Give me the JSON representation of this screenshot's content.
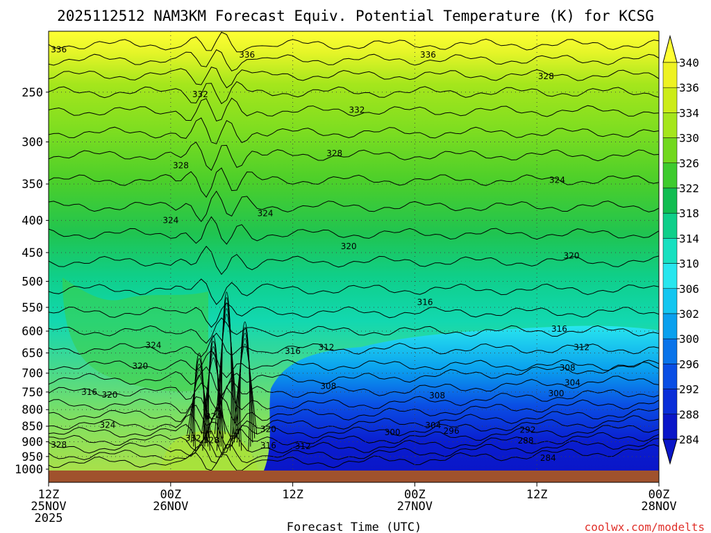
{
  "chart_data": {
    "type": "heatmap",
    "title": "2025112512 NAM3KM Forecast Equiv. Potential Temperature (K) for KCSG",
    "xlabel": "Forecast Time (UTC)",
    "ylabel": "",
    "credit": "coolwx.com/modelts",
    "x_ticks": [
      {
        "hour": 0,
        "line1": "12Z",
        "line2": "25NOV",
        "line3": "2025"
      },
      {
        "hour": 12,
        "line1": "00Z",
        "line2": "26NOV",
        "line3": ""
      },
      {
        "hour": 24,
        "line1": "12Z",
        "line2": "",
        "line3": ""
      },
      {
        "hour": 36,
        "line1": "00Z",
        "line2": "27NOV",
        "line3": ""
      },
      {
        "hour": 48,
        "line1": "12Z",
        "line2": "",
        "line3": ""
      },
      {
        "hour": 60,
        "line1": "00Z",
        "line2": "28NOV",
        "line3": ""
      }
    ],
    "xlim_hours": [
      0,
      60
    ],
    "y_ticks": [
      250,
      300,
      350,
      400,
      450,
      500,
      550,
      600,
      650,
      700,
      750,
      800,
      850,
      900,
      950,
      1000
    ],
    "ylim_hpa": [
      200,
      1000
    ],
    "y_scale": "log-pressure",
    "grid": true,
    "colorbar": {
      "labels": [
        340,
        336,
        334,
        330,
        326,
        322,
        318,
        314,
        310,
        306,
        302,
        300,
        296,
        292,
        288,
        284
      ],
      "colors": [
        "#ffff33",
        "#eef222",
        "#ccec18",
        "#a5e61c",
        "#72d81e",
        "#3ecb2e",
        "#12bd52",
        "#0fcf8a",
        "#18e0c0",
        "#28e6ee",
        "#14c6f0",
        "#0aa0ee",
        "#0a74ea",
        "#0a4ee4",
        "#0a2ed8",
        "#0a16c8"
      ]
    },
    "contour_labels": [
      {
        "text": "336",
        "hour": 1.0,
        "p": 214
      },
      {
        "text": "336",
        "hour": 19.5,
        "p": 218
      },
      {
        "text": "336",
        "hour": 37.3,
        "p": 218
      },
      {
        "text": "332",
        "hour": 14.9,
        "p": 252
      },
      {
        "text": "332",
        "hour": 30.3,
        "p": 267
      },
      {
        "text": "328",
        "hour": 48.9,
        "p": 236
      },
      {
        "text": "328",
        "hour": 28.1,
        "p": 313
      },
      {
        "text": "328",
        "hour": 13.0,
        "p": 327
      },
      {
        "text": "324",
        "hour": 50.0,
        "p": 345
      },
      {
        "text": "324",
        "hour": 21.3,
        "p": 390
      },
      {
        "text": "324",
        "hour": 12.0,
        "p": 400
      },
      {
        "text": "320",
        "hour": 29.5,
        "p": 440
      },
      {
        "text": "320",
        "hour": 51.4,
        "p": 455
      },
      {
        "text": "316",
        "hour": 37.0,
        "p": 540
      },
      {
        "text": "316",
        "hour": 50.2,
        "p": 595
      },
      {
        "text": "312",
        "hour": 52.4,
        "p": 637
      },
      {
        "text": "316",
        "hour": 24.0,
        "p": 646
      },
      {
        "text": "312",
        "hour": 27.3,
        "p": 637
      },
      {
        "text": "324",
        "hour": 10.3,
        "p": 632
      },
      {
        "text": "320",
        "hour": 9.0,
        "p": 682
      },
      {
        "text": "308",
        "hour": 51.0,
        "p": 686
      },
      {
        "text": "304",
        "hour": 51.5,
        "p": 725
      },
      {
        "text": "308",
        "hour": 27.5,
        "p": 734
      },
      {
        "text": "316",
        "hour": 4.0,
        "p": 750
      },
      {
        "text": "320",
        "hour": 6.0,
        "p": 758
      },
      {
        "text": "300",
        "hour": 49.9,
        "p": 754
      },
      {
        "text": "308",
        "hour": 38.2,
        "p": 760
      },
      {
        "text": "324",
        "hour": 16.2,
        "p": 820
      },
      {
        "text": "324",
        "hour": 5.8,
        "p": 847
      },
      {
        "text": "320",
        "hour": 21.6,
        "p": 860
      },
      {
        "text": "304",
        "hour": 37.8,
        "p": 848
      },
      {
        "text": "296",
        "hour": 39.6,
        "p": 865
      },
      {
        "text": "300",
        "hour": 33.8,
        "p": 869
      },
      {
        "text": "292",
        "hour": 47.1,
        "p": 862
      },
      {
        "text": "332",
        "hour": 14.2,
        "p": 888
      },
      {
        "text": "328",
        "hour": 16.0,
        "p": 895
      },
      {
        "text": "288",
        "hour": 46.9,
        "p": 897
      },
      {
        "text": "328",
        "hour": 1.0,
        "p": 910
      },
      {
        "text": "316",
        "hour": 21.6,
        "p": 912
      },
      {
        "text": "312",
        "hour": 25.0,
        "p": 915
      },
      {
        "text": "284",
        "hour": 49.1,
        "p": 955
      }
    ]
  }
}
